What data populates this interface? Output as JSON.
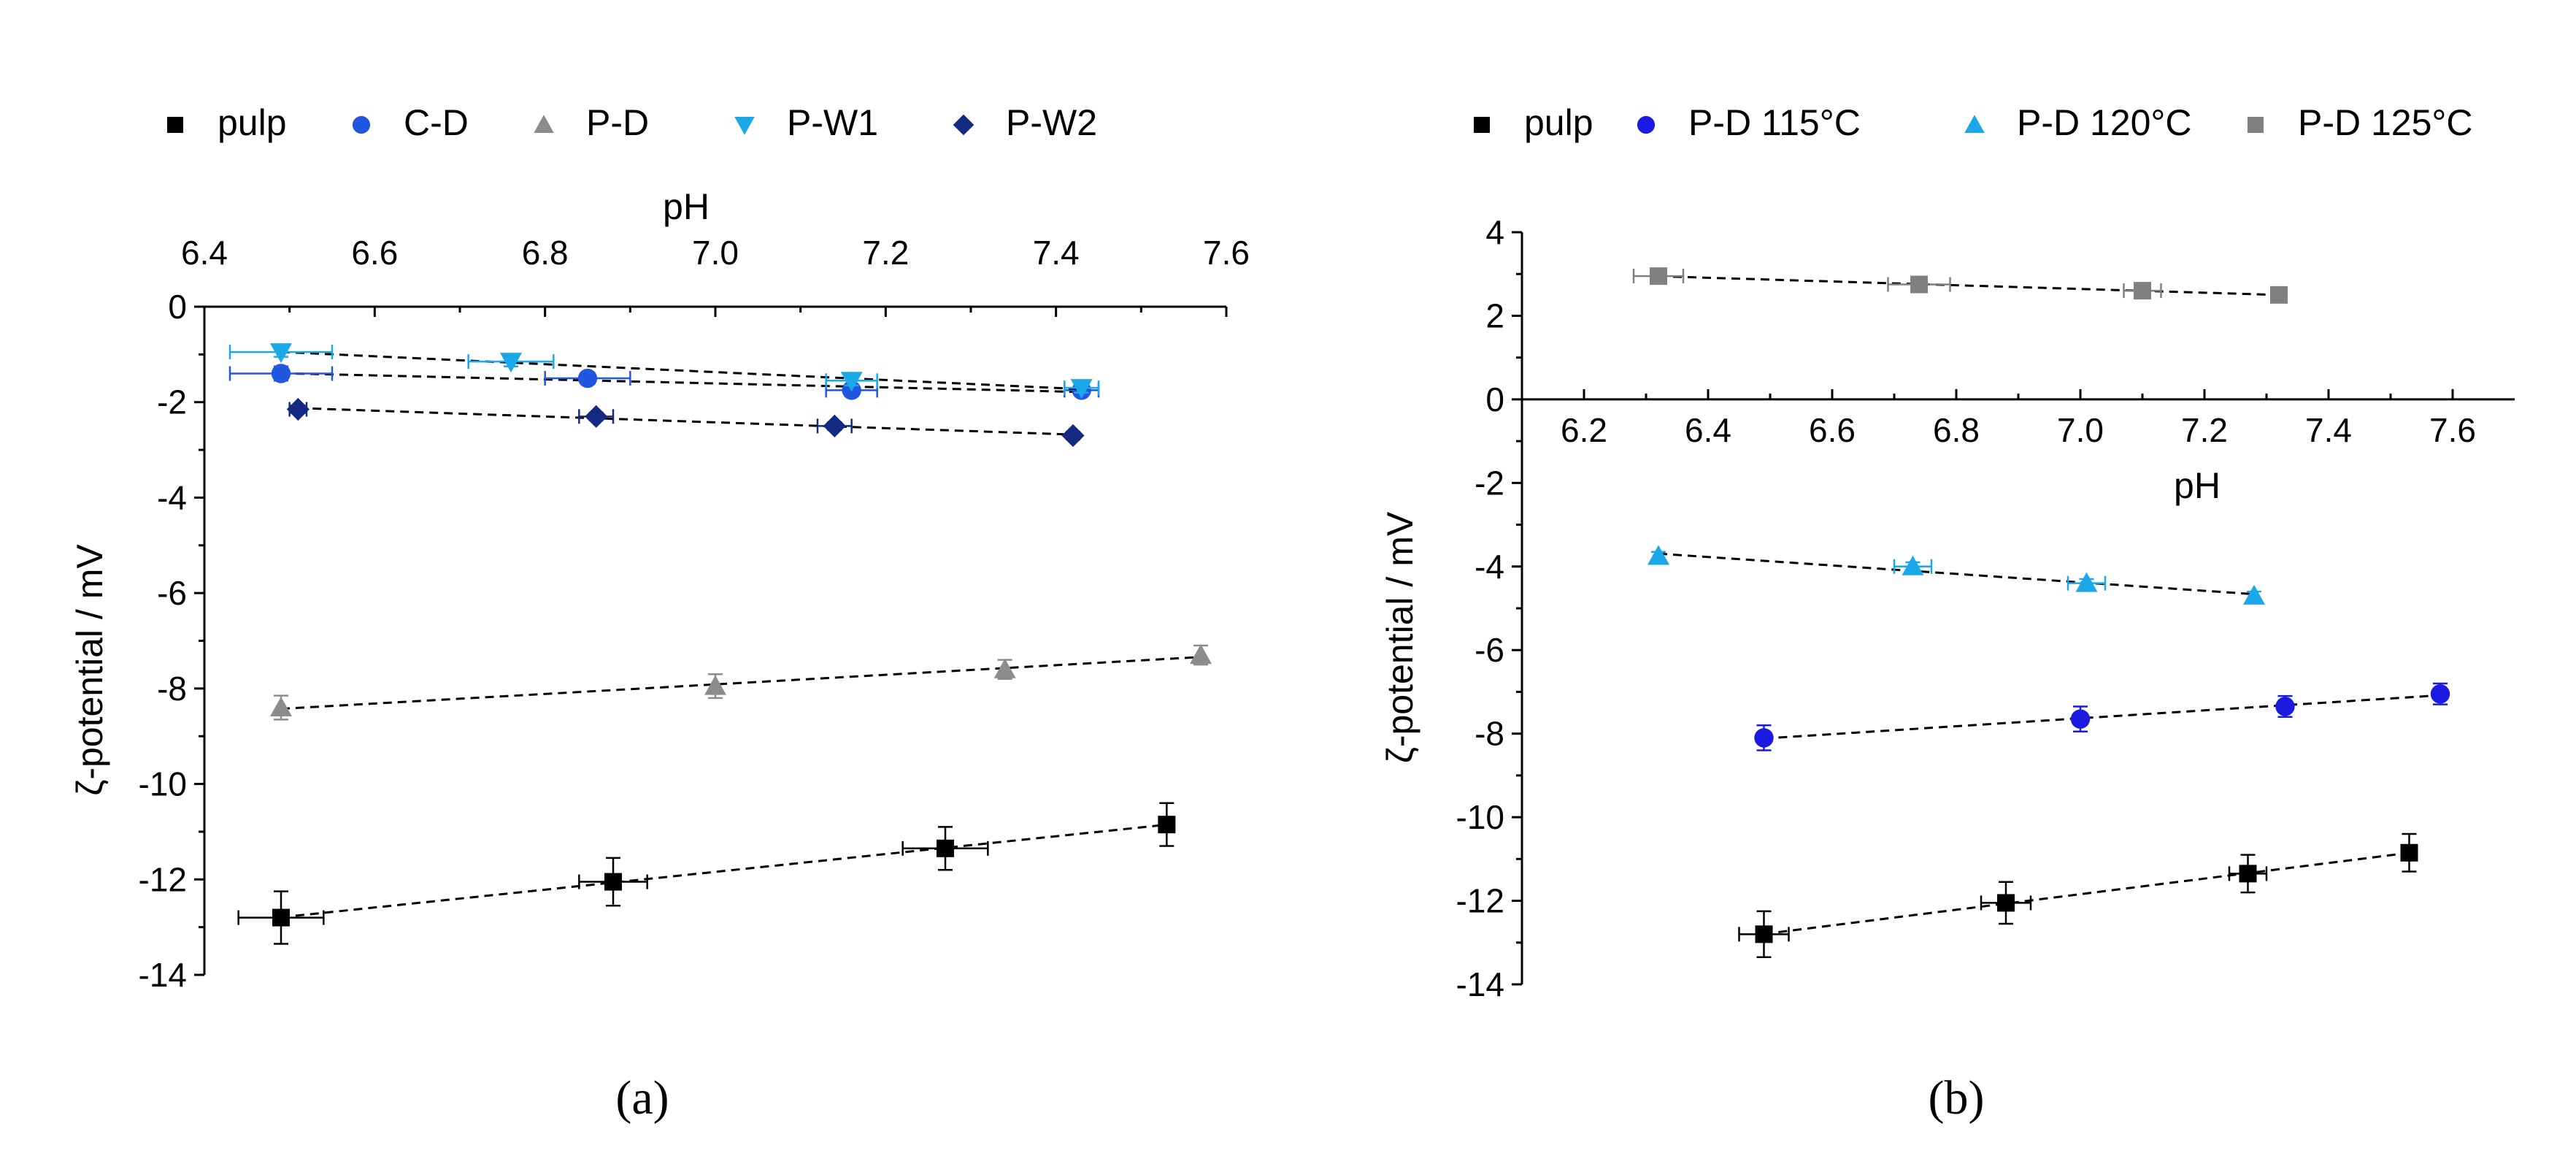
{
  "chart_data": [
    {
      "id": "a",
      "type": "scatter",
      "panel_label": "(a)",
      "xlabel": "pH",
      "ylabel": "ζ-potential / mV",
      "xlim": [
        6.4,
        7.6
      ],
      "ylim": [
        -14,
        0
      ],
      "x_axis_position": "top",
      "grid": false,
      "legend": "top",
      "x_ticks": [
        "6.4",
        "6.6",
        "6.8",
        "7.0",
        "7.2",
        "7.4",
        "7.6"
      ],
      "y_ticks": [
        "0",
        "-2",
        "-4",
        "-6",
        "-8",
        "-10",
        "-12",
        "-14"
      ],
      "series": [
        {
          "name": "pulp",
          "marker": "square",
          "color": "#000000",
          "points": [
            {
              "x": 6.49,
              "y": -12.8,
              "xerr": 0.05,
              "yerr": 0.55
            },
            {
              "x": 6.88,
              "y": -12.05,
              "xerr": 0.04,
              "yerr": 0.5
            },
            {
              "x": 7.27,
              "y": -11.35,
              "xerr": 0.05,
              "yerr": 0.45
            },
            {
              "x": 7.53,
              "y": -10.85,
              "xerr": 0.0,
              "yerr": 0.45
            }
          ]
        },
        {
          "name": "C-D",
          "marker": "circle",
          "color": "#2156e0",
          "points": [
            {
              "x": 6.49,
              "y": -1.4,
              "xerr": 0.06,
              "yerr": 0.15
            },
            {
              "x": 6.85,
              "y": -1.5,
              "xerr": 0.05,
              "yerr": 0.12
            },
            {
              "x": 7.16,
              "y": -1.75,
              "xerr": 0.03,
              "yerr": 0.12
            },
            {
              "x": 7.43,
              "y": -1.75,
              "xerr": 0.02,
              "yerr": 0.1
            }
          ]
        },
        {
          "name": "P-D",
          "marker": "triangle-up",
          "color": "#8c8c8c",
          "points": [
            {
              "x": 6.49,
              "y": -8.4,
              "xerr": 0.0,
              "yerr": 0.25
            },
            {
              "x": 7.0,
              "y": -7.95,
              "xerr": 0.0,
              "yerr": 0.25
            },
            {
              "x": 7.34,
              "y": -7.6,
              "xerr": 0.0,
              "yerr": 0.2
            },
            {
              "x": 7.57,
              "y": -7.3,
              "xerr": 0.0,
              "yerr": 0.2
            }
          ]
        },
        {
          "name": "P-W1",
          "marker": "triangle-down",
          "color": "#1aa8e8",
          "points": [
            {
              "x": 6.49,
              "y": -0.95,
              "xerr": 0.06,
              "yerr": 0.1
            },
            {
              "x": 6.76,
              "y": -1.15,
              "xerr": 0.05,
              "yerr": 0.1
            },
            {
              "x": 7.16,
              "y": -1.55,
              "xerr": 0.03,
              "yerr": 0.1
            },
            {
              "x": 7.43,
              "y": -1.7,
              "xerr": 0.02,
              "yerr": 0.1
            }
          ]
        },
        {
          "name": "P-W2",
          "marker": "diamond",
          "color": "#142a80",
          "points": [
            {
              "x": 6.51,
              "y": -2.15,
              "xerr": 0.01,
              "yerr": 0.08
            },
            {
              "x": 6.86,
              "y": -2.3,
              "xerr": 0.02,
              "yerr": 0.08
            },
            {
              "x": 7.14,
              "y": -2.5,
              "xerr": 0.02,
              "yerr": 0.08
            },
            {
              "x": 7.42,
              "y": -2.7,
              "xerr": 0.0,
              "yerr": 0.08
            }
          ]
        }
      ]
    },
    {
      "id": "b",
      "type": "scatter",
      "panel_label": "(b)",
      "xlabel": "pH",
      "ylabel": "ζ-potential / mV",
      "xlim": [
        6.1,
        7.7
      ],
      "ylim": [
        -14,
        4
      ],
      "x_axis_position": "zero",
      "grid": false,
      "legend": "top",
      "x_ticks": [
        "6.2",
        "6.4",
        "6.6",
        "6.8",
        "7.0",
        "7.2",
        "7.4",
        "7.6"
      ],
      "y_ticks": [
        "4",
        "2",
        "0",
        "-2",
        "-4",
        "-6",
        "-8",
        "-10",
        "-12",
        "-14"
      ],
      "series": [
        {
          "name": "pulp",
          "marker": "square",
          "color": "#000000",
          "points": [
            {
              "x": 6.49,
              "y": -12.8,
              "xerr": 0.04,
              "yerr": 0.55
            },
            {
              "x": 6.88,
              "y": -12.05,
              "xerr": 0.04,
              "yerr": 0.5
            },
            {
              "x": 7.27,
              "y": -11.35,
              "xerr": 0.03,
              "yerr": 0.45
            },
            {
              "x": 7.53,
              "y": -10.85,
              "xerr": 0.0,
              "yerr": 0.45
            }
          ]
        },
        {
          "name": "P-D 115°C",
          "marker": "circle",
          "color": "#1a1ae0",
          "points": [
            {
              "x": 6.49,
              "y": -8.1,
              "xerr": 0.0,
              "yerr": 0.3
            },
            {
              "x": 7.0,
              "y": -7.65,
              "xerr": 0.0,
              "yerr": 0.3
            },
            {
              "x": 7.33,
              "y": -7.35,
              "xerr": 0.0,
              "yerr": 0.25
            },
            {
              "x": 7.58,
              "y": -7.05,
              "xerr": 0.0,
              "yerr": 0.25
            }
          ]
        },
        {
          "name": "P-D 120°C",
          "marker": "triangle-up",
          "color": "#1aa8e8",
          "points": [
            {
              "x": 6.32,
              "y": -3.75,
              "xerr": 0.0,
              "yerr": 0.1
            },
            {
              "x": 6.73,
              "y": -4.0,
              "xerr": 0.03,
              "yerr": 0.1
            },
            {
              "x": 7.01,
              "y": -4.4,
              "xerr": 0.03,
              "yerr": 0.1
            },
            {
              "x": 7.28,
              "y": -4.7,
              "xerr": 0.0,
              "yerr": 0.1
            }
          ]
        },
        {
          "name": "P-D 125°C",
          "marker": "square",
          "color": "#808080",
          "points": [
            {
              "x": 6.32,
              "y": 2.95,
              "xerr": 0.04,
              "yerr": 0.05
            },
            {
              "x": 6.74,
              "y": 2.75,
              "xerr": 0.05,
              "yerr": 0.05
            },
            {
              "x": 7.1,
              "y": 2.6,
              "xerr": 0.03,
              "yerr": 0.05
            },
            {
              "x": 7.32,
              "y": 2.5,
              "xerr": 0.0,
              "yerr": 0.05
            }
          ]
        }
      ]
    }
  ]
}
